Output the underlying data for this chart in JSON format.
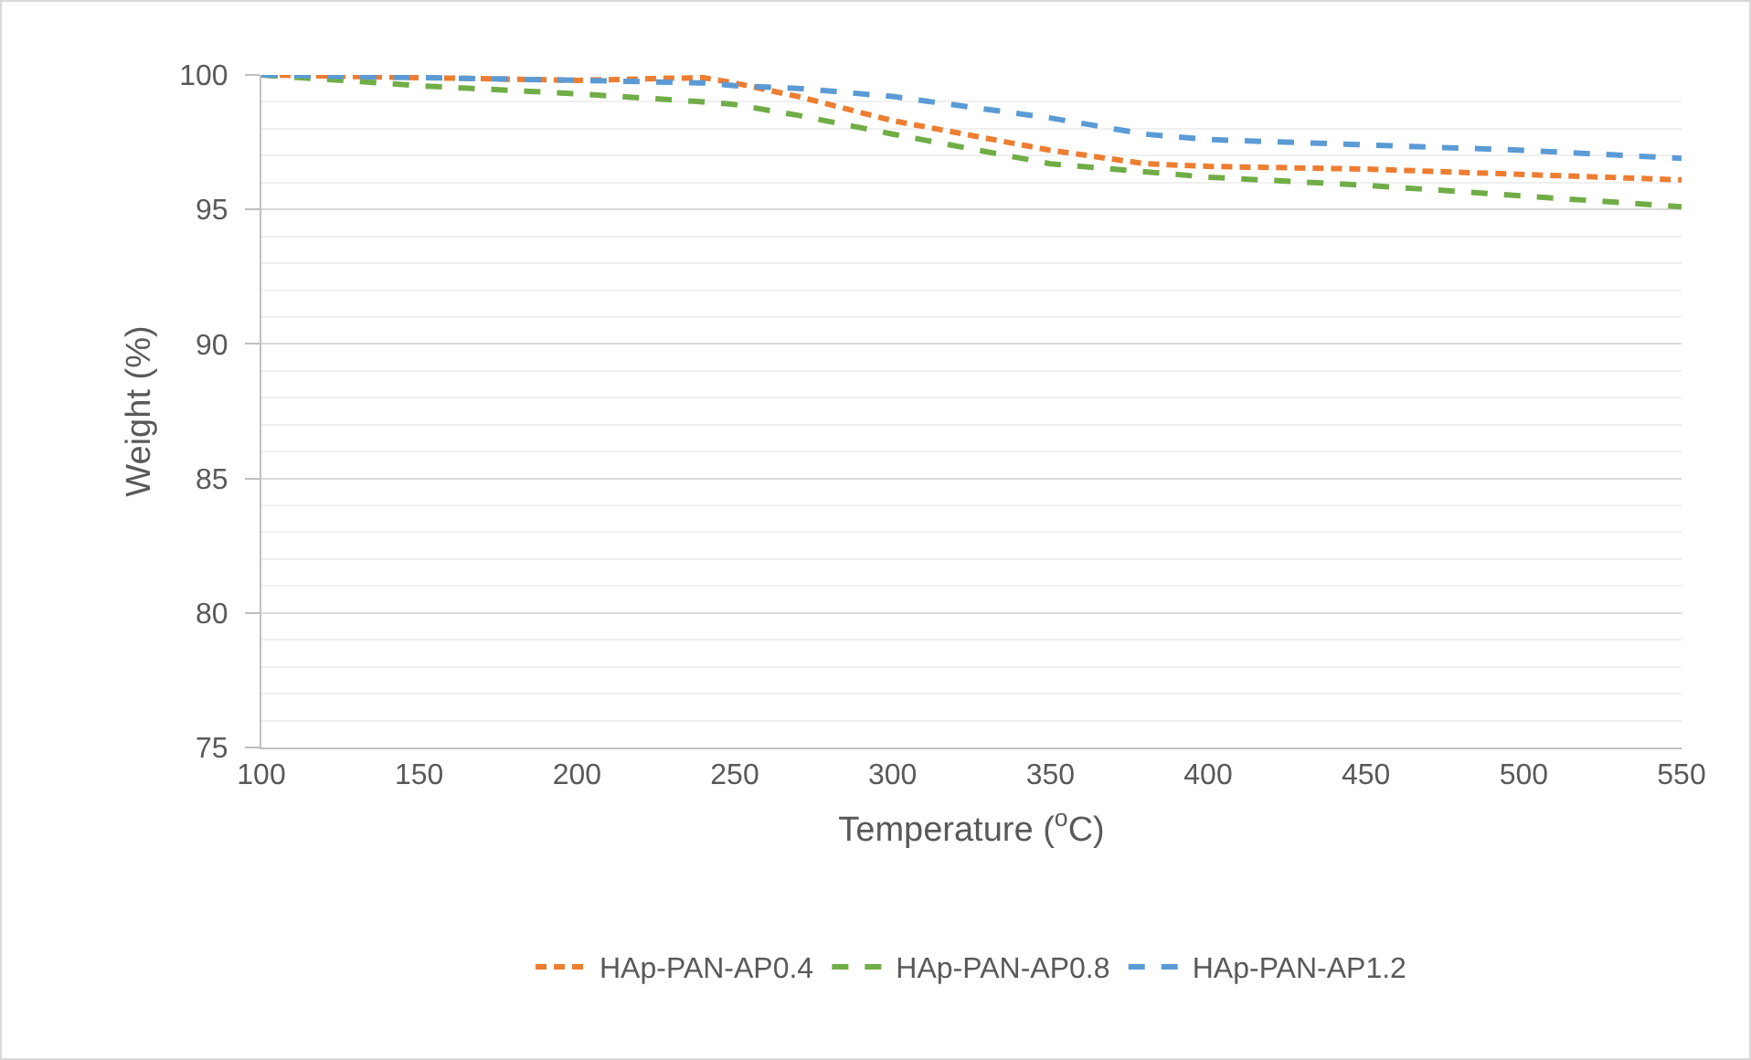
{
  "chart_data": {
    "type": "line",
    "xlabel": "Temperature ($^{o}$C)",
    "ylabel": "Weight (%)",
    "x": [
      100,
      150,
      200,
      240,
      250,
      270,
      300,
      350,
      380,
      400,
      450,
      500,
      550
    ],
    "xlim": [
      100,
      550
    ],
    "xticks": [
      100,
      150,
      200,
      250,
      300,
      350,
      400,
      450,
      500,
      550
    ],
    "ylim": [
      75,
      100
    ],
    "yticks": [
      75,
      80,
      85,
      90,
      95,
      100
    ],
    "grid": "y",
    "legend": "bottom",
    "marker": "none",
    "series": [
      {
        "name": "HAp-PAN-AP0.4",
        "color": "#ed7d31",
        "line_style": "dotted",
        "values": [
          100,
          99.9,
          99.8,
          99.9,
          99.7,
          99.2,
          98.3,
          97.2,
          96.7,
          96.6,
          96.5,
          96.3,
          96.1
        ]
      },
      {
        "name": "HAp-PAN-AP0.8",
        "color": "#70ad47",
        "line_style": "dashed",
        "values": [
          100,
          99.6,
          99.3,
          99.0,
          98.9,
          98.5,
          97.8,
          96.7,
          96.4,
          96.2,
          95.9,
          95.5,
          95.1
        ]
      },
      {
        "name": "HAp-PAN-AP1.2",
        "color": "#5b9bd5",
        "line_style": "dashed",
        "values": [
          100,
          99.9,
          99.8,
          99.7,
          99.6,
          99.5,
          99.2,
          98.4,
          97.8,
          97.6,
          97.4,
          97.2,
          96.9
        ]
      }
    ]
  }
}
